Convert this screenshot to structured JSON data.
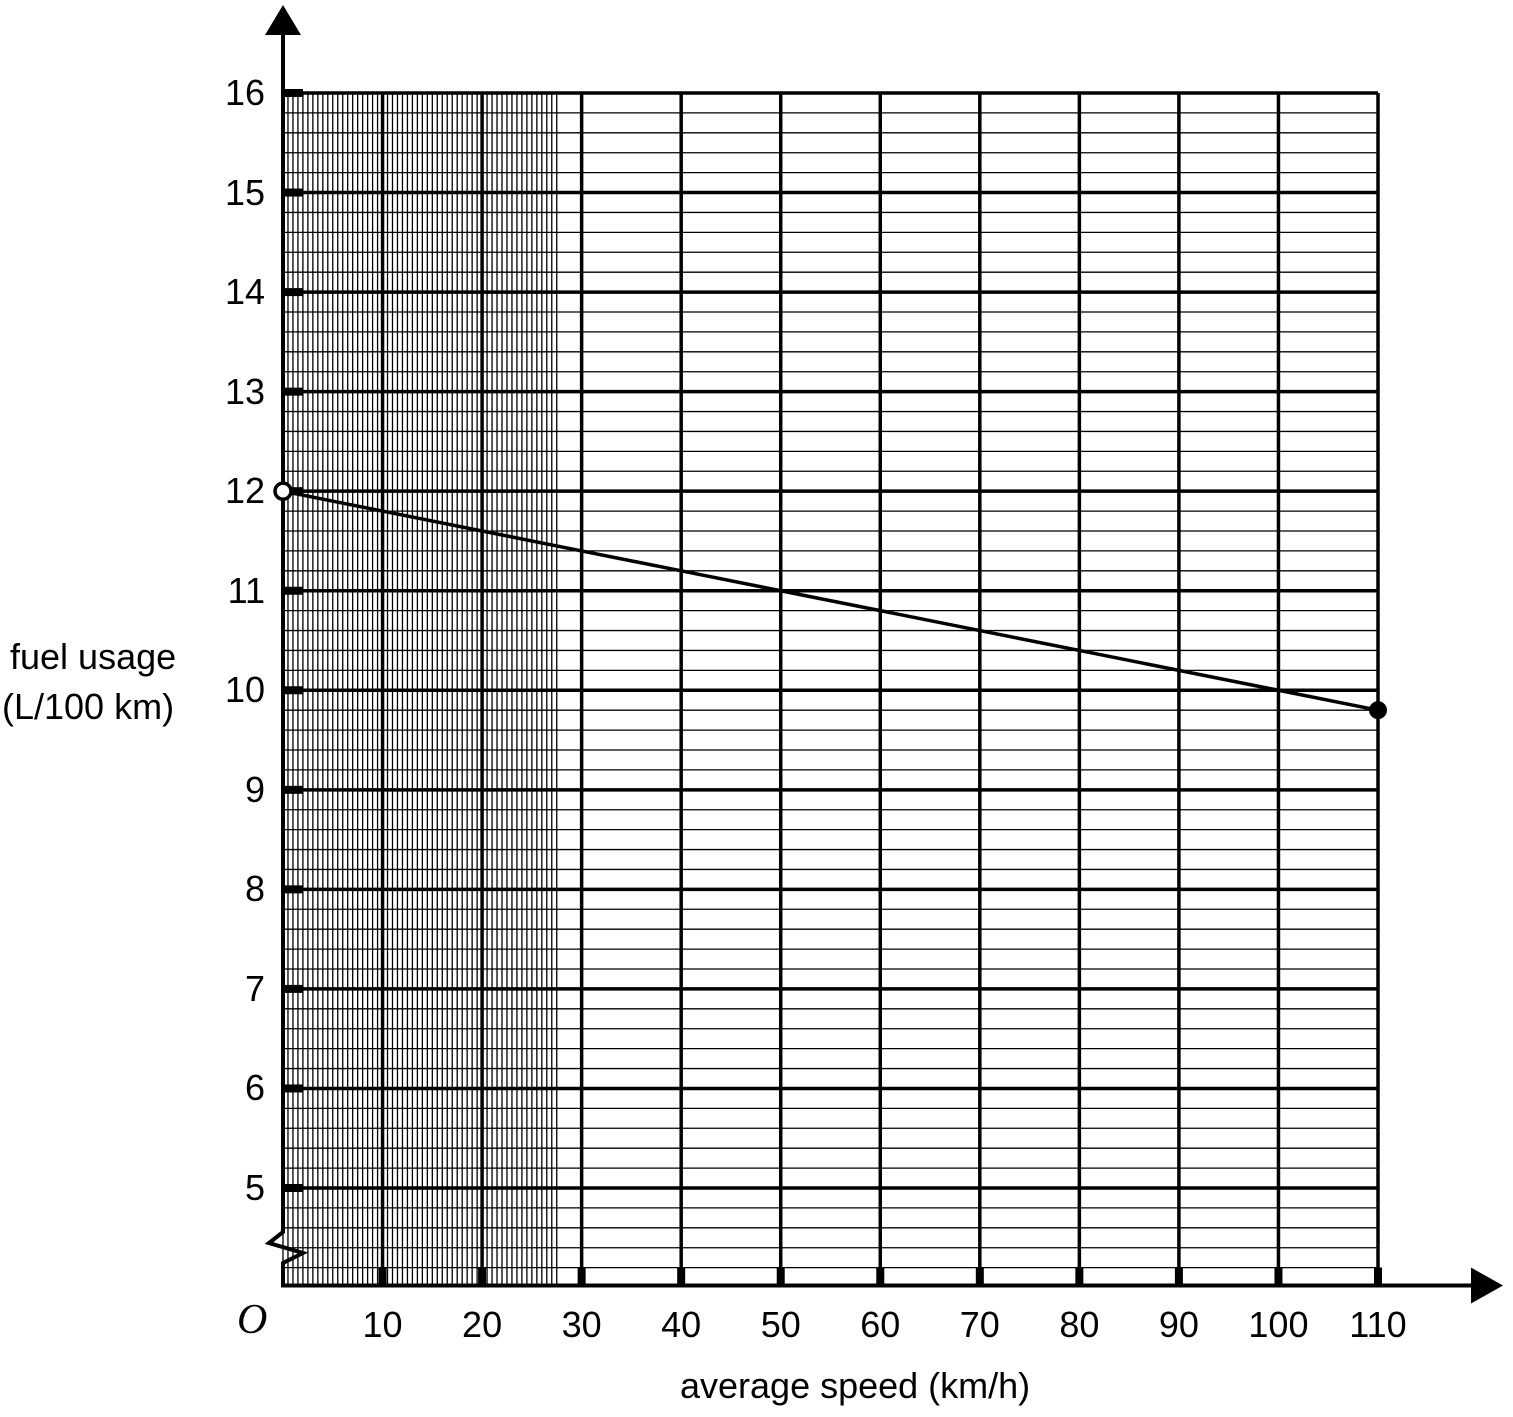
{
  "chart_data": {
    "type": "line",
    "title": "",
    "xlabel": "average speed (km/h)",
    "ylabel": "fuel usage (L/100 km)",
    "origin_label": "O",
    "x_ticks": [
      "10",
      "20",
      "30",
      "40",
      "50",
      "60",
      "70",
      "80",
      "90",
      "100",
      "110"
    ],
    "y_ticks": [
      "5",
      "6",
      "7",
      "8",
      "9",
      "10",
      "11",
      "12",
      "13",
      "14",
      "15",
      "16"
    ],
    "xlim": [
      0,
      110
    ],
    "ylim": [
      4,
      16
    ],
    "y_axis_break": true,
    "grid": true,
    "grid_minor_divisions": 5,
    "series": [
      {
        "name": "fuel usage",
        "x": [
          0,
          10,
          20,
          30,
          40,
          50,
          60,
          70,
          80,
          90,
          100,
          110
        ],
        "values": [
          12,
          11.8,
          11.6,
          11.4,
          11.2,
          11.0,
          10.8,
          10.6,
          10.4,
          10.2,
          10.0,
          9.8
        ],
        "start_point": {
          "x": 0,
          "y": 12,
          "style": "open-circle"
        },
        "end_point": {
          "x": 110,
          "y": 9.8,
          "style": "closed-circle"
        }
      }
    ]
  },
  "labels": {
    "ylabel_line1": "fuel usage",
    "ylabel_line2": "(L/100 km)",
    "xlabel": "average speed (km/h)",
    "origin": "O"
  }
}
